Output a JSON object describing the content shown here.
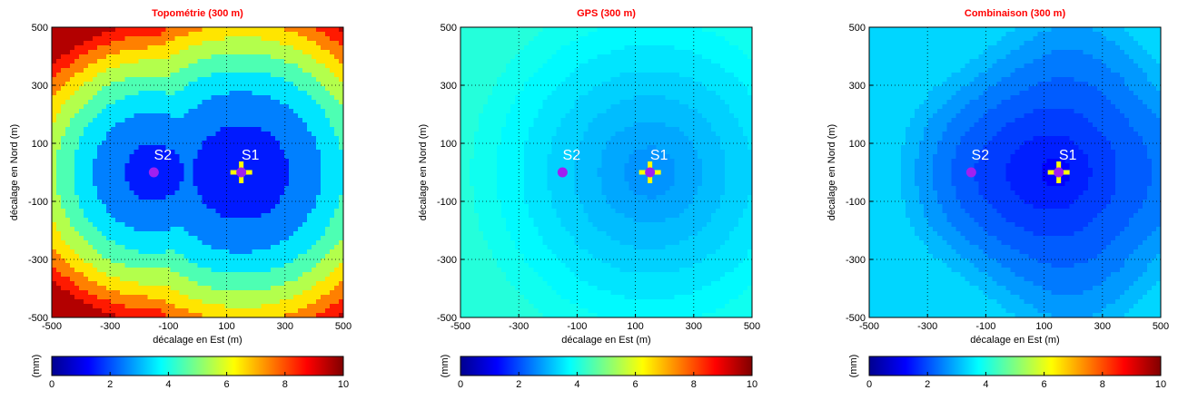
{
  "colorbar": {
    "unit": "(mm)",
    "ticks": [
      "0",
      "2",
      "4",
      "6",
      "8",
      "10"
    ],
    "range": [
      0,
      10
    ],
    "colormap": "jet"
  },
  "chart_data": [
    {
      "type": "heatmap",
      "title": "Topométrie (300 m)",
      "xlabel": "décalage en Est (m)",
      "ylabel": "décalage en Nord (m)",
      "xlim": [
        -500,
        500
      ],
      "ylim": [
        -500,
        500
      ],
      "xticks": [
        "-500",
        "-300",
        "-100",
        "100",
        "300",
        "500"
      ],
      "yticks": [
        "500",
        "300",
        "100",
        "-100",
        "-300",
        "-500"
      ],
      "grid": true,
      "markers": [
        {
          "label": "S2",
          "x": -150,
          "y": 0,
          "symbol": "dot"
        },
        {
          "label": "S1",
          "x": 150,
          "y": 0,
          "symbol": "cross"
        }
      ],
      "value_range_mm": [
        1.5,
        10
      ]
    },
    {
      "type": "heatmap",
      "title": "GPS (300 m)",
      "xlabel": "décalage en Est (m)",
      "ylabel": "décalage en Nord (m)",
      "xlim": [
        -500,
        500
      ],
      "ylim": [
        -500,
        500
      ],
      "xticks": [
        "-500",
        "-300",
        "-100",
        "100",
        "300",
        "500"
      ],
      "yticks": [
        "500",
        "300",
        "100",
        "-100",
        "-300",
        "-500"
      ],
      "grid": true,
      "markers": [
        {
          "label": "S2",
          "x": -150,
          "y": 0,
          "symbol": "dot"
        },
        {
          "label": "S1",
          "x": 150,
          "y": 0,
          "symbol": "cross"
        }
      ],
      "value_range_mm": [
        2.6,
        4.2
      ]
    },
    {
      "type": "heatmap",
      "title": "Combinaison (300 m)",
      "xlabel": "décalage en Est (m)",
      "ylabel": "décalage en Nord (m)",
      "xlim": [
        -500,
        500
      ],
      "ylim": [
        -500,
        500
      ],
      "xticks": [
        "-500",
        "-300",
        "-100",
        "100",
        "300",
        "500"
      ],
      "yticks": [
        "500",
        "300",
        "100",
        "-100",
        "-300",
        "-500"
      ],
      "grid": true,
      "markers": [
        {
          "label": "S2",
          "x": -150,
          "y": 0,
          "symbol": "dot"
        },
        {
          "label": "S1",
          "x": 150,
          "y": 0,
          "symbol": "cross"
        }
      ],
      "value_range_mm": [
        1.0,
        3.4
      ]
    }
  ],
  "colors": {
    "title": "#ff0000",
    "marker_dot": "#a020f0",
    "marker_cross": "#ffff00",
    "marker_label": "#ffffff"
  }
}
